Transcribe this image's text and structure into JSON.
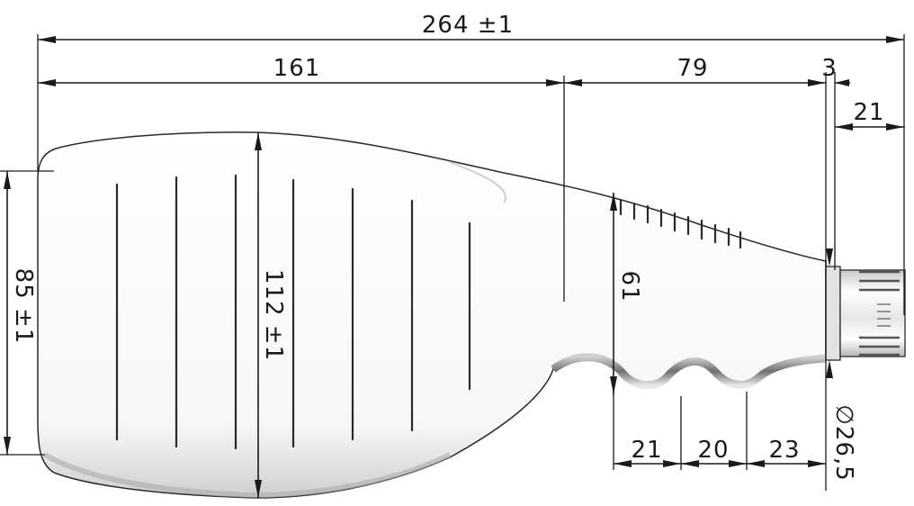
{
  "drawing": {
    "overall_length": "264 ±1",
    "body_length": "161",
    "shoulder_length": "79",
    "flange_thickness": "3",
    "neck_length": "21",
    "body_width": "85 ±1",
    "body_height": "112 ±1",
    "grip_height": "61",
    "grip_pitch_1": "21",
    "grip_pitch_2": "20",
    "grip_pitch_3": "23",
    "neck_diameter": "∅26,5"
  },
  "colors": {
    "line": "#1a1a1a",
    "bottle_fill": "#f4f4f4",
    "shadow": "#9a9a9a"
  }
}
